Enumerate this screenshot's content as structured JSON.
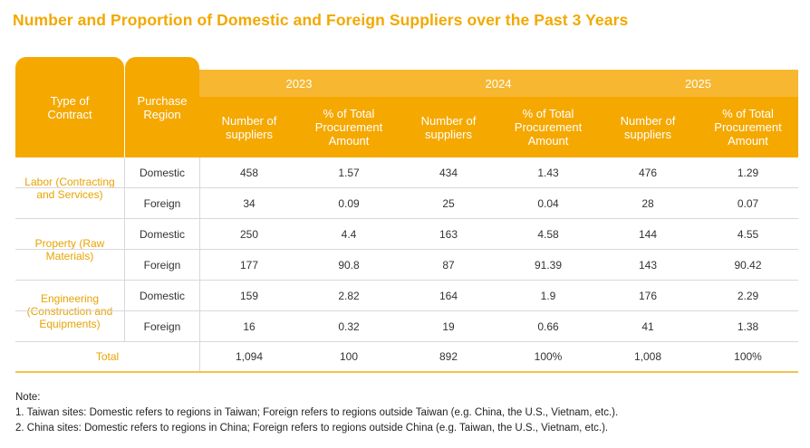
{
  "title": "Number and Proportion of Domestic and Foreign Suppliers over the Past 3 Years",
  "header": {
    "type_of_contract": "Type of Contract",
    "purchase_region": "Purchase Region",
    "years": [
      "2023",
      "2024",
      "2025"
    ],
    "num_suppliers": "Number of suppliers",
    "pct_amount": "% of Total Procurement Amount"
  },
  "groups": [
    {
      "label": "Labor (Contracting and Services)",
      "rows": [
        {
          "region": "Domestic",
          "values": [
            "458",
            "1.57",
            "434",
            "1.43",
            "476",
            "1.29"
          ]
        },
        {
          "region": "Foreign",
          "values": [
            "34",
            "0.09",
            "25",
            "0.04",
            "28",
            "0.07"
          ]
        }
      ]
    },
    {
      "label": "Property (Raw Materials)",
      "rows": [
        {
          "region": "Domestic",
          "values": [
            "250",
            "4.4",
            "163",
            "4.58",
            "144",
            "4.55"
          ]
        },
        {
          "region": "Foreign",
          "values": [
            "177",
            "90.8",
            "87",
            "91.39",
            "143",
            "90.42"
          ]
        }
      ]
    },
    {
      "label": "Engineering (Construction and Equipments)",
      "rows": [
        {
          "region": "Domestic",
          "values": [
            "159",
            "2.82",
            "164",
            "1.9",
            "176",
            "2.29"
          ]
        },
        {
          "region": "Foreign",
          "values": [
            "16",
            "0.32",
            "19",
            "0.66",
            "41",
            "1.38"
          ]
        }
      ]
    }
  ],
  "total": {
    "label": "Total",
    "values": [
      "1,094",
      "100",
      "892",
      "100%",
      "1,008",
      "100%"
    ]
  },
  "notes": {
    "heading": "Note:",
    "items": [
      "1.  Taiwan sites: Domestic refers to regions in Taiwan; Foreign refers to regions outside Taiwan (e.g. China, the U.S., Vietnam, etc.).",
      "2.  China sites: Domestic refers to regions in China; Foreign refers to regions outside China (e.g. Taiwan, the U.S., Vietnam, etc.)."
    ]
  },
  "colors": {
    "accent": "#f5a800",
    "accent_light": "#f7b731",
    "title": "#f2a900",
    "group_text": "#e9a300"
  }
}
